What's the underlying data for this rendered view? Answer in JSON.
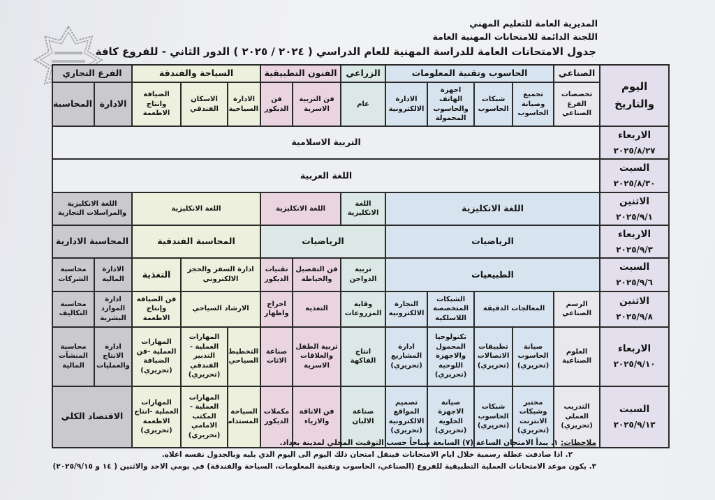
{
  "header": {
    "line1": "المديرية العامة للتعليم المهني",
    "line2": "اللجنة الدائمة للامتحانات المهنية العامة",
    "title": "جدول الامتحانات العامة للدراسة المهنية للعام الدراسي ( ٢٠٢٤ / ٢٠٢٥ ) الدور الثاني - للفروع كافة"
  },
  "colors": {
    "date": "#e3dfec",
    "industrial": "#e9e9ed",
    "computing": "#d7e4ef",
    "agricultural": "#dbe8e5",
    "arts": "#e9d4e0",
    "tourism": "#eef0de",
    "commercial": "#c9c9ce"
  },
  "stamp": {
    "icon": "octagram-seal"
  },
  "table": {
    "date_header": "اليوم والتاريخ",
    "branches": [
      {
        "label": "الصناعي",
        "span": 1,
        "cls": "ind"
      },
      {
        "label": "الحاسوب وتقنية المعلومات",
        "span": 4,
        "cls": "comp"
      },
      {
        "label": "الزراعي",
        "span": 1,
        "cls": "agri"
      },
      {
        "label": "الفنون التطبيقية",
        "span": 2,
        "cls": "arts"
      },
      {
        "label": "السياحة والفندقة",
        "span": 3,
        "cls": "tour"
      },
      {
        "label": "الفرع التجاري",
        "span": 2,
        "cls": "comm"
      }
    ],
    "specialties": [
      {
        "label": "تخصصات الفرع الصناعي",
        "cls": "ind"
      },
      {
        "label": "تجميع وصيانة الحاسوب",
        "cls": "comp"
      },
      {
        "label": "شبكات الحاسوب",
        "cls": "comp"
      },
      {
        "label": "اجهزة الهاتف والحاسوب المحمولة",
        "cls": "comp"
      },
      {
        "label": "الادارة الالكترونية",
        "cls": "comp"
      },
      {
        "label": "عام",
        "cls": "agri"
      },
      {
        "label": "فن التربية الاسرية",
        "cls": "arts"
      },
      {
        "label": "فن الديكور",
        "cls": "arts"
      },
      {
        "label": "الادارة السياحية",
        "cls": "tour"
      },
      {
        "label": "الاسكان الفندقي",
        "cls": "tour"
      },
      {
        "label": "الضيافة وانتاج الاطعمة",
        "cls": "tour"
      },
      {
        "label": "الادارة",
        "cls": "comm big"
      },
      {
        "label": "المحاسبة",
        "cls": "comm big"
      }
    ],
    "rows": [
      {
        "day": "الاربعاء",
        "date": "٢٠٢٥/٨/٢٧",
        "cells": [
          {
            "text": "التربية الاسلامية",
            "span": 13,
            "cls": "all"
          }
        ]
      },
      {
        "day": "السبت",
        "date": "٢٠٢٥/٨/٣٠",
        "cells": [
          {
            "text": "اللغة العربية",
            "span": 13,
            "cls": "all"
          }
        ]
      },
      {
        "day": "الاثنين",
        "date": "٢٠٢٥/٩/١",
        "cells": [
          {
            "text": "اللغة الانكليزية",
            "span": 5,
            "cls": "comp big"
          },
          {
            "text": "اللغة الانكليزية",
            "span": 1,
            "cls": "agri"
          },
          {
            "text": "اللغة الانكليزية",
            "span": 2,
            "cls": "arts"
          },
          {
            "text": "اللغة الانكليزية",
            "span": 3,
            "cls": "tour"
          },
          {
            "text": "اللغة الانكليزية والمراسلات التجارية",
            "span": 2,
            "cls": "comm"
          }
        ]
      },
      {
        "day": "الاربعاء",
        "date": "٢٠٢٥/٩/٣",
        "cells": [
          {
            "text": "الرياضيات",
            "span": 5,
            "cls": "comp big"
          },
          {
            "text": "الرياضيات",
            "span": 3,
            "cls": "agri big"
          },
          {
            "text": "المحاسبة الفندقية",
            "span": 3,
            "cls": "tour big"
          },
          {
            "text": "المحاسبة الادارية",
            "span": 2,
            "cls": "comm big"
          }
        ]
      },
      {
        "day": "السبت",
        "date": "٢٠٢٥/٩/٦",
        "cells": [
          {
            "text": "الطبيعيات",
            "span": 5,
            "cls": "comp big"
          },
          {
            "text": "تربية الدواجن",
            "span": 1,
            "cls": "agri"
          },
          {
            "text": "فن التفصيل والخياطة",
            "span": 1,
            "cls": "arts"
          },
          {
            "text": "تقنيات الديكور",
            "span": 1,
            "cls": "arts"
          },
          {
            "text": "ادارة السفر والحجز الالكتروني",
            "span": 2,
            "cls": "tour"
          },
          {
            "text": "التغذية",
            "span": 1,
            "cls": "tour big"
          },
          {
            "text": "الادارة المالية",
            "span": 1,
            "cls": "comm"
          },
          {
            "text": "محاسبة الشركات",
            "span": 1,
            "cls": "comm"
          }
        ]
      },
      {
        "day": "الاثنين",
        "date": "٢٠٢٥/٩/٨",
        "cells": [
          {
            "text": "الرسم الصناعي",
            "span": 1,
            "cls": "ind"
          },
          {
            "text": "المعالجات الدقيقة",
            "span": 2,
            "cls": "comp"
          },
          {
            "text": "الشبكات المتخصصة اللاسلكية",
            "span": 1,
            "cls": "comp"
          },
          {
            "text": "التجارة الالكترونية",
            "span": 1,
            "cls": "comp"
          },
          {
            "text": "وقاية المزروعات",
            "span": 1,
            "cls": "agri"
          },
          {
            "text": "التغذية",
            "span": 1,
            "cls": "arts"
          },
          {
            "text": "اخراج واظهار",
            "span": 1,
            "cls": "arts"
          },
          {
            "text": "الارشاد السياحي",
            "span": 2,
            "cls": "tour"
          },
          {
            "text": "فن الضيافة وإنتاج الاطعمة",
            "span": 1,
            "cls": "tour"
          },
          {
            "text": "ادارة الموارد البشرية",
            "span": 1,
            "cls": "comm"
          },
          {
            "text": "محاسبة التكاليف",
            "span": 1,
            "cls": "comm"
          }
        ]
      },
      {
        "day": "الاربعاء",
        "date": "٢٠٢٥/٩/١٠",
        "cells": [
          {
            "text": "العلوم الصناعية",
            "span": 1,
            "cls": "ind"
          },
          {
            "text": "صيانة الحاسوب (تحريري)",
            "span": 1,
            "cls": "comp"
          },
          {
            "text": "تطبيقات الاتصالات (تحريري)",
            "span": 1,
            "cls": "comp"
          },
          {
            "text": "تكنولوجيا المحمول والاجهزة اللوحية (تحريري)",
            "span": 1,
            "cls": "comp"
          },
          {
            "text": "ادارة المشاريع (تحريري)",
            "span": 1,
            "cls": "comp"
          },
          {
            "text": "انتاج الفاكهة",
            "span": 1,
            "cls": "agri"
          },
          {
            "text": "تربية الطفل والعلاقات الاسرية",
            "span": 1,
            "cls": "arts"
          },
          {
            "text": "صناعة الاثاث",
            "span": 1,
            "cls": "arts"
          },
          {
            "text": "التخطيط السياحي",
            "span": 1,
            "cls": "tour"
          },
          {
            "text": "المهارات العملية - التدبير الفندقي (تحريري)",
            "span": 1,
            "cls": "tour"
          },
          {
            "text": "المهارات العملية -فن الضيافة (تحريري)",
            "span": 1,
            "cls": "tour"
          },
          {
            "text": "ادارة الانتاج والعمليات",
            "span": 1,
            "cls": "comm"
          },
          {
            "text": "محاسبة المنشآت المالية",
            "span": 1,
            "cls": "comm"
          }
        ]
      },
      {
        "day": "السبت",
        "date": "٢٠٢٥/٩/١٣",
        "cells": [
          {
            "text": "التدريب العملي (تحريري)",
            "span": 1,
            "cls": "ind"
          },
          {
            "text": "مختبر وشبكات الانترنت (تحريري)",
            "span": 1,
            "cls": "comp"
          },
          {
            "text": "شبكات الحاسوب (تحريري)",
            "span": 1,
            "cls": "comp"
          },
          {
            "text": "صيانة الاجهزة الخلوية (تحريري)",
            "span": 1,
            "cls": "comp"
          },
          {
            "text": "تصميم المواقع الالكترونية (تحريري)",
            "span": 1,
            "cls": "comp"
          },
          {
            "text": "صناعة الالبان",
            "span": 1,
            "cls": "agri"
          },
          {
            "text": "فن الاناقة والازياء",
            "span": 1,
            "cls": "arts"
          },
          {
            "text": "مكملات الديكور",
            "span": 1,
            "cls": "arts"
          },
          {
            "text": "السياحة المستدامة",
            "span": 1,
            "cls": "tour"
          },
          {
            "text": "المهارات العملية - المكتب الامامي (تحريري)",
            "span": 1,
            "cls": "tour"
          },
          {
            "text": "المهارات العملية -انتاج الاطعمة (تحريري)",
            "span": 1,
            "cls": "tour"
          },
          {
            "text": "الاقتصاد الكلي",
            "span": 2,
            "cls": "comm big"
          }
        ]
      }
    ]
  },
  "notes": {
    "label": "ملاحظات:",
    "items": [
      "١. يبدأ الامتحان الساعة (٧) السابعة صباحاً حسب التوقيت المحلي لمدينة بغداد.",
      "٢. اذا صادفت عطلة رسمية خلال ايام الامتحانات فينقل امتحان ذلك اليوم الى اليوم الذي يليه وبالجدول نفسه اعلاه.",
      "٣. يكون موعد الامتحانات العملية التطبيقية للفروع (الصناعي، الحاسوب وتقنية المعلومات، السياحة والفندقة) في يومي الاحد والاثنين ( ١٤ و ٢٠٢٥/٩/١٥)"
    ]
  }
}
